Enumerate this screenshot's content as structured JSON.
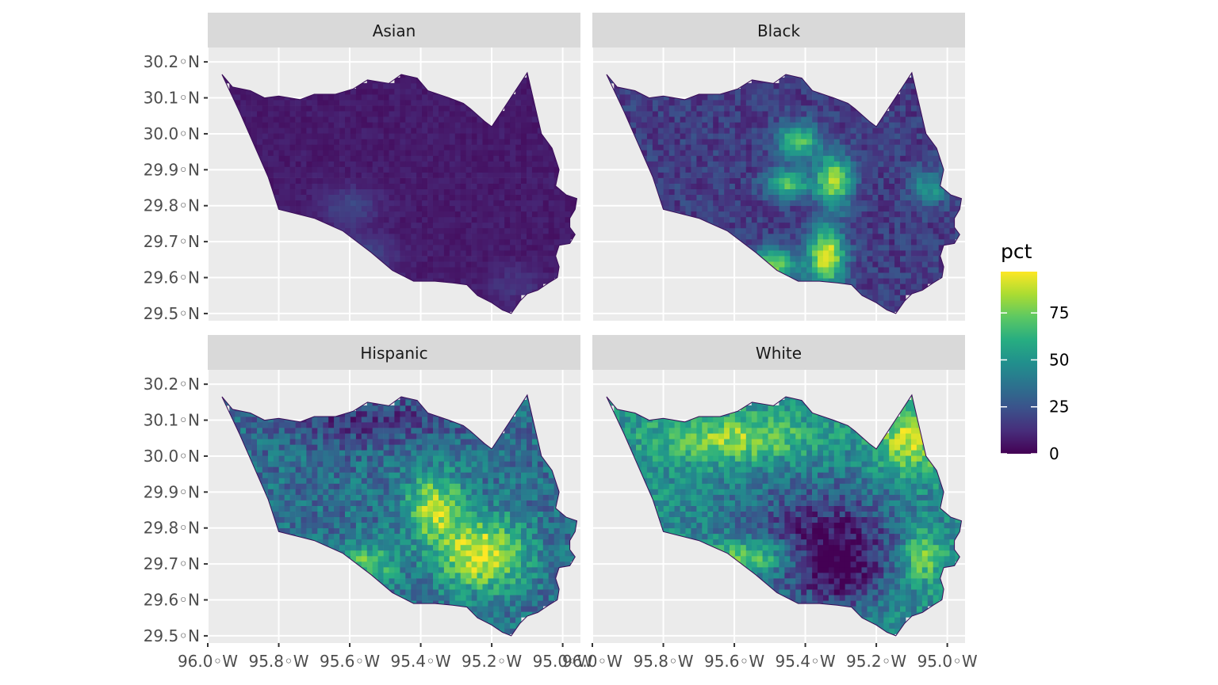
{
  "chart_data": {
    "type": "choropleth",
    "facets": [
      {
        "label": "Asian"
      },
      {
        "label": "Black"
      },
      {
        "label": "Hispanic"
      },
      {
        "label": "White"
      }
    ],
    "x_ticks": [
      {
        "value": -96.0,
        "label": "96.0◦W"
      },
      {
        "value": -95.8,
        "label": "95.8◦W"
      },
      {
        "value": -95.6,
        "label": "95.6◦W"
      },
      {
        "value": -95.4,
        "label": "95.4◦W"
      },
      {
        "value": -95.2,
        "label": "95.2◦W"
      },
      {
        "value": -95.0,
        "label": "95.0◦W"
      }
    ],
    "y_ticks": [
      {
        "value": 30.2,
        "label": "30.2◦N"
      },
      {
        "value": 30.1,
        "label": "30.1◦N"
      },
      {
        "value": 30.0,
        "label": "30.0◦N"
      },
      {
        "value": 29.9,
        "label": "29.9◦N"
      },
      {
        "value": 29.8,
        "label": "29.8◦N"
      },
      {
        "value": 29.7,
        "label": "29.7◦N"
      },
      {
        "value": 29.6,
        "label": "29.6◦N"
      },
      {
        "value": 29.5,
        "label": "29.5◦N"
      }
    ],
    "xlim": [
      -96.0,
      -94.95
    ],
    "ylim": [
      29.48,
      30.24
    ],
    "legend": {
      "title": "pct",
      "position": "right",
      "breaks": [
        {
          "value": 0,
          "label": "0"
        },
        {
          "value": 25,
          "label": "25"
        },
        {
          "value": 50,
          "label": "50"
        },
        {
          "value": 75,
          "label": "75"
        }
      ],
      "range": [
        0,
        97
      ],
      "colors": [
        "#440154",
        "#472d7b",
        "#3b528b",
        "#2c728e",
        "#21908d",
        "#27ad81",
        "#5cc863",
        "#aadc32",
        "#fde725"
      ]
    },
    "panel_background": "#ebebeb",
    "strip_background": "#d9d9d9",
    "grid": true
  }
}
